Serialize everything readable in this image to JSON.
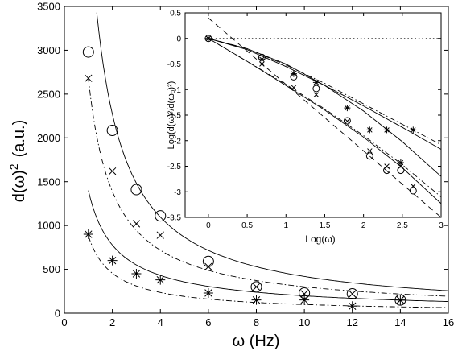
{
  "chart_data": [
    {
      "type": "scatter",
      "title": "",
      "xlabel": "ω (Hz)",
      "ylabel_main": "d(ω)",
      "ylabel_sup": "2",
      "ylabel_unit": "(a.u.)",
      "xlim": [
        0,
        16
      ],
      "ylim": [
        0,
        3500
      ],
      "xticks": [
        0,
        2,
        4,
        6,
        8,
        10,
        12,
        14,
        16
      ],
      "yticks": [
        0,
        500,
        1000,
        1500,
        2000,
        2500,
        3000,
        3500
      ],
      "grid": false,
      "series": [
        {
          "marker": "circle",
          "x": [
            1,
            2,
            3,
            4,
            6,
            8,
            10,
            12,
            14
          ],
          "y": [
            2980,
            2085,
            1410,
            1110,
            590,
            300,
            230,
            220,
            150
          ]
        },
        {
          "marker": "x",
          "x": [
            1,
            2,
            3,
            4,
            6,
            8,
            10,
            12,
            14
          ],
          "y": [
            2680,
            1620,
            1020,
            890,
            530,
            300,
            220,
            220,
            150
          ]
        },
        {
          "marker": "star",
          "x": [
            1,
            2,
            3,
            4,
            6,
            8,
            10,
            12,
            14
          ],
          "y": [
            900,
            600,
            450,
            380,
            230,
            150,
            150,
            80,
            150
          ]
        }
      ],
      "fits": [
        {
          "style": "solid",
          "a": 4700,
          "p": 1.05,
          "x": [
            1.35,
            16
          ]
        },
        {
          "style": "dashdot",
          "a": 2680,
          "p": 0.95,
          "x": [
            1,
            16
          ]
        },
        {
          "style": "solid",
          "a": 1400,
          "p": 0.85,
          "x": [
            1,
            16
          ]
        },
        {
          "style": "dashdot",
          "a": 880,
          "p": 0.95,
          "x": [
            1,
            16
          ]
        }
      ]
    },
    {
      "type": "scatter",
      "title": "",
      "xlabel": "Log(ω)",
      "ylabel": "Log(d(ω)²/d(ω₀)²)",
      "xlim": [
        -0.3,
        3
      ],
      "ylim": [
        -3.5,
        0.5
      ],
      "xticks": [
        "0",
        "0.5",
        "1",
        "1.5",
        "2",
        "2.5",
        "3"
      ],
      "yticks": [
        "0.5",
        "0",
        "-0.5",
        "-1",
        "-1.5",
        "-2",
        "-2.5",
        "-3",
        "-3.5"
      ],
      "grid": false,
      "series": [
        {
          "marker": "circle",
          "x": [
            0,
            0.69,
            1.1,
            1.39,
            1.79,
            2.08,
            2.3,
            2.48,
            2.64
          ],
          "y": [
            0,
            -0.37,
            -0.75,
            -0.98,
            -1.61,
            -2.3,
            -2.58,
            -2.58,
            -2.98
          ]
        },
        {
          "marker": "x",
          "x": [
            0,
            0.69,
            1.1,
            1.39,
            1.79,
            2.08,
            2.3,
            2.48,
            2.64
          ],
          "y": [
            0,
            -0.5,
            -0.96,
            -1.1,
            -1.62,
            -2.2,
            -2.5,
            -2.5,
            -2.89
          ]
        },
        {
          "marker": "star",
          "x": [
            0,
            0.69,
            1.1,
            1.39,
            1.79,
            2.08,
            2.3,
            2.48,
            2.64
          ],
          "y": [
            0,
            -0.41,
            -0.69,
            -0.86,
            -1.36,
            -1.79,
            -1.79,
            -2.43,
            -1.79
          ]
        }
      ],
      "lines": [
        {
          "style": "dotted",
          "x": [
            0,
            3
          ],
          "y": [
            0,
            0
          ]
        },
        {
          "style": "dashed",
          "x": [
            0,
            3
          ],
          "y": [
            0.4,
            -3.5
          ]
        },
        {
          "style": "solid",
          "x": [
            0,
            0.5,
            1,
            1.5,
            2,
            2.5,
            3
          ],
          "y": [
            0,
            -0.2,
            -0.5,
            -0.92,
            -1.42,
            -2.02,
            -2.7
          ]
        },
        {
          "style": "solid",
          "x": [
            0,
            0.5,
            1,
            1.5,
            2,
            2.5,
            3
          ],
          "y": [
            0,
            -0.22,
            -0.55,
            -0.92,
            -1.32,
            -1.74,
            -2.17
          ]
        },
        {
          "style": "dashdot",
          "x": [
            0,
            0.5,
            1,
            1.5,
            2,
            2.5,
            3
          ],
          "y": [
            0,
            -0.2,
            -0.52,
            -0.88,
            -1.28,
            -1.68,
            -2.08
          ]
        },
        {
          "style": "solid",
          "x": [
            0,
            0.5,
            1,
            1.5,
            2,
            2.5,
            3
          ],
          "y": [
            0,
            -0.45,
            -0.92,
            -1.4,
            -1.93,
            -2.53,
            -3.23
          ]
        },
        {
          "style": "dashdot",
          "x": [
            0,
            0.5,
            1,
            1.5,
            2,
            2.5,
            3
          ],
          "y": [
            0,
            -0.45,
            -0.9,
            -1.38,
            -1.9,
            -2.47,
            -3.1
          ]
        }
      ]
    }
  ]
}
